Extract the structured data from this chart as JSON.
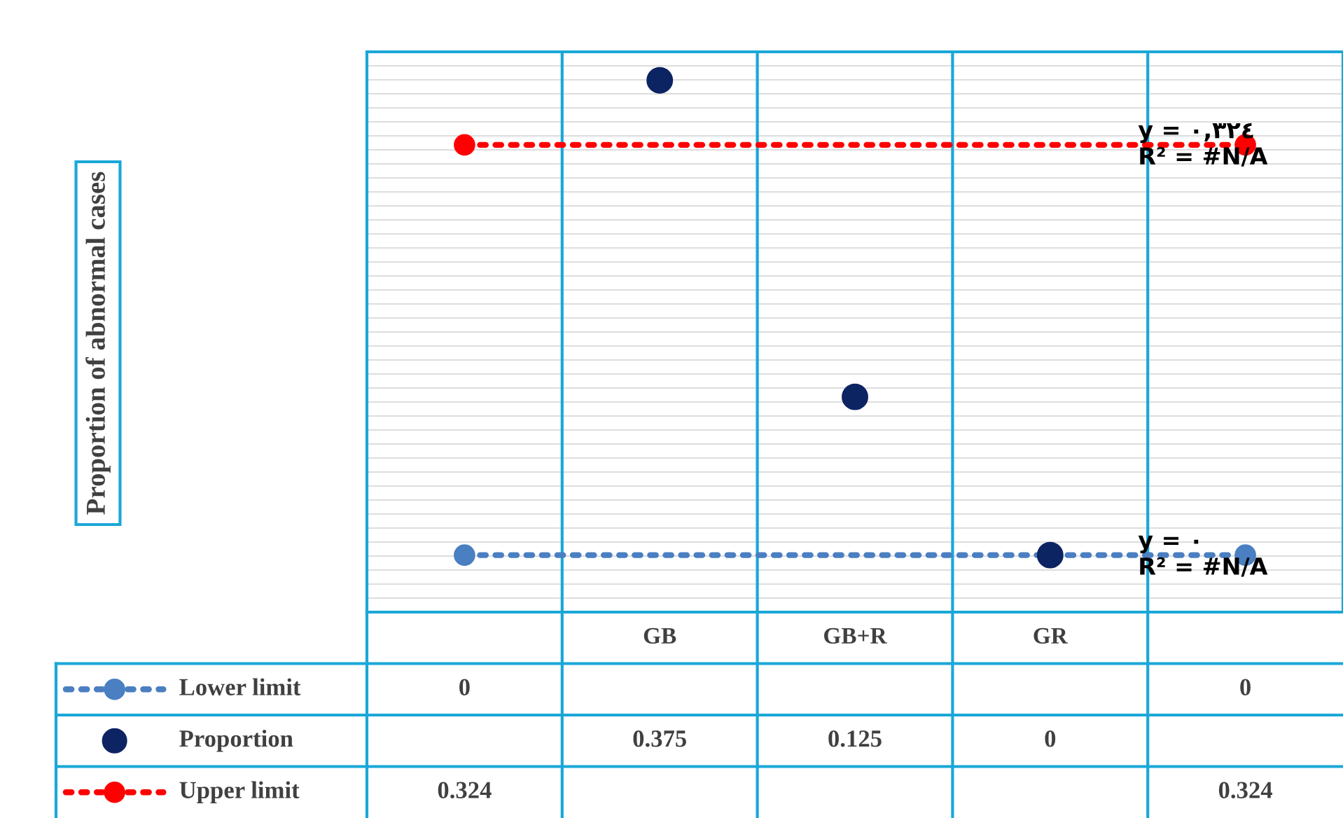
{
  "chart_data": {
    "type": "scatter",
    "categories": [
      null,
      "GB",
      "GB+R",
      "GR",
      null
    ],
    "series": [
      {
        "name": "Lower limit",
        "type": "line",
        "color": "#4a7fc1",
        "line_style": "dotted",
        "values": [
          0,
          null,
          null,
          null,
          0
        ]
      },
      {
        "name": "Proportion",
        "color": "#0d2463",
        "values": [
          null,
          0.375,
          0.125,
          0,
          null
        ]
      },
      {
        "name": "Upper limit",
        "type": "line",
        "color": "#ff0000",
        "line_style": "dotted",
        "values": [
          0.324,
          null,
          null,
          null,
          0.324
        ]
      }
    ],
    "marker": "circle",
    "data_labels": true,
    "grid": true,
    "legend": "bottom",
    "annotations": [
      "Proportion of abnormal cases",
      {
        "text": "y = ٠,٣٢٤\nR² = #N/A",
        "y": 0.324
      },
      {
        "text": "y = ٠\nR² = #N/A",
        "y": 0
      }
    ]
  }
}
